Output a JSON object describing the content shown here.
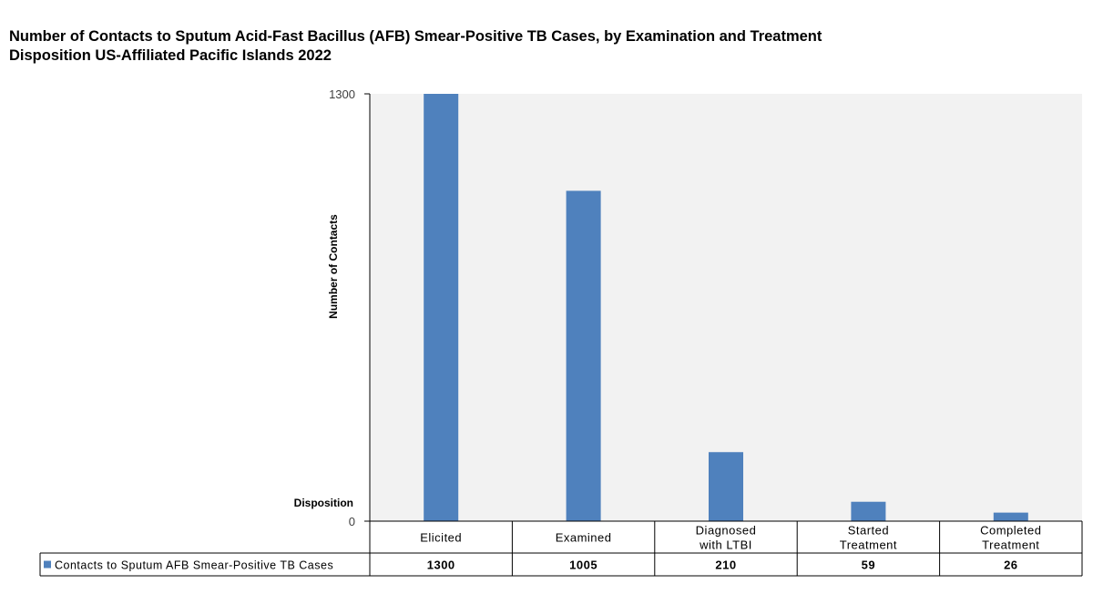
{
  "title": {
    "line1": "Number of Contacts to Sputum Acid-Fast Bacillus (AFB) Smear-Positive TB Cases, by Examination and Treatment",
    "line2": "Disposition US-Affiliated Pacific Islands 2022"
  },
  "colors": {
    "bar": "#4F81BD",
    "plot_background": "#F2F2F2",
    "axis": "#000000",
    "gridline": "#D9D9D9"
  },
  "chart_data": {
    "type": "bar",
    "title": "Number of Contacts to Sputum Acid-Fast Bacillus (AFB) Smear-Positive TB Cases, by Examination and Treatment Disposition US-Affiliated Pacific Islands 2022",
    "xlabel": "Disposition",
    "ylabel": "Number of Contacts",
    "ylim": [
      0,
      1300
    ],
    "yticks": [
      "0",
      "1300"
    ],
    "categories": [
      [
        "Elicited"
      ],
      [
        "Examined"
      ],
      [
        "Diagnosed",
        "with LTBI"
      ],
      [
        "Started",
        "Treatment"
      ],
      [
        "Completed",
        "Treatment"
      ]
    ],
    "series": [
      {
        "name": "Contacts to Sputum AFB Smear-Positive TB Cases",
        "values": [
          1300,
          1005,
          210,
          59,
          26
        ],
        "labels": [
          "1300",
          "1005",
          "210",
          "59",
          "26"
        ]
      }
    ],
    "legend": "data-table-left",
    "grid": false
  }
}
